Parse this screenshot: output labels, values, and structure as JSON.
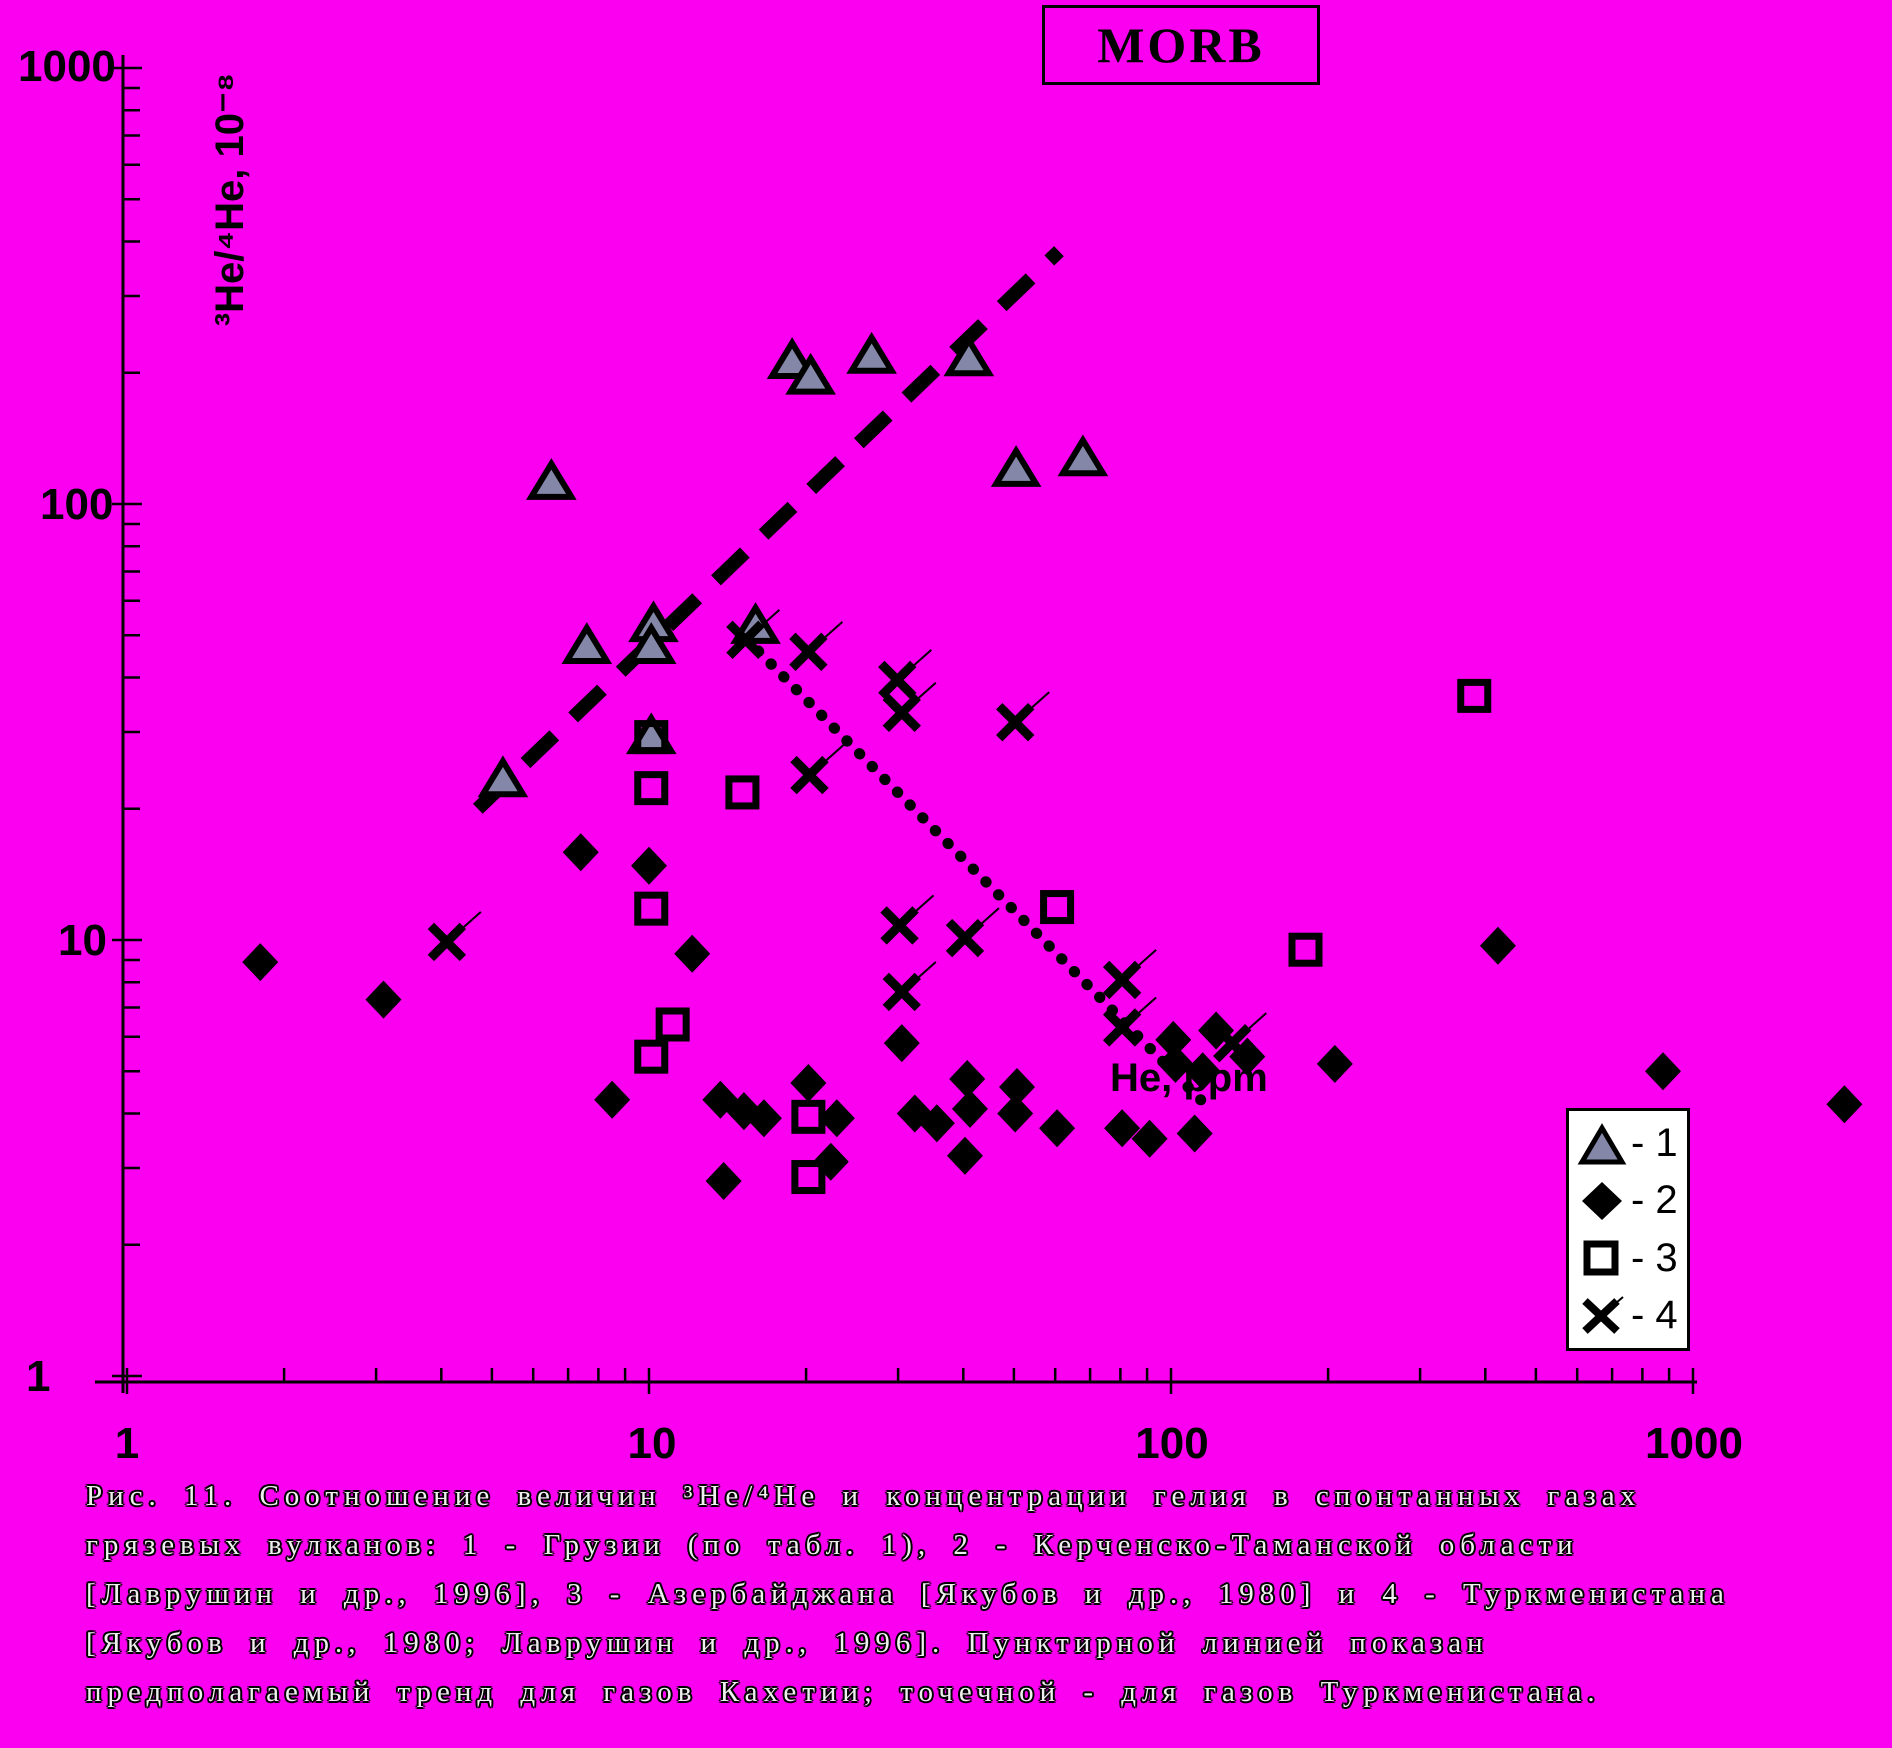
{
  "title_box": {
    "label": "MORB"
  },
  "axes": {
    "y_label": "³He/⁴He, 10⁻⁸",
    "x_label": "He, ppm",
    "y_ticks": [
      "1000",
      "100",
      "10",
      "1"
    ],
    "x_ticks": [
      "1",
      "10",
      "100",
      "1000"
    ]
  },
  "legend": {
    "items": [
      {
        "symbol": "triangle",
        "label": "- 1"
      },
      {
        "symbol": "diamond",
        "label": "- 2"
      },
      {
        "symbol": "square",
        "label": "- 3"
      },
      {
        "symbol": "x",
        "label": "- 4"
      }
    ]
  },
  "colors": {
    "background": "#FB00F0",
    "triangle_fill": "#8487A8",
    "ink": "#000000",
    "legend_background": "#FFFFFF"
  },
  "caption": {
    "lines": [
      "Рис. 11. Соотношение величин ³Не/⁴Не и концентрации гелия в спонтанных газах",
      "грязевых вулканов: 1 - Грузии (по табл. 1), 2 - Керченско-Таманской области",
      "[Лаврушин и др., 1996], 3 - Азербайджана [Якубов и др., 1980] и 4 - Туркменистана",
      "[Якубов и др., 1980; Лаврушин и др., 1996]. Пунктирной линией показан",
      "предполагаемый тренд для газов Кахетии; точечной - для газов Туркменистана."
    ]
  },
  "chart_data": {
    "type": "scatter",
    "x_scale": "log",
    "y_scale": "log",
    "xlim": [
      1,
      1000
    ],
    "ylim": [
      1,
      1000
    ],
    "xlabel": "He, ppm",
    "ylabel": "3He/4He, 10^-8",
    "grid": false,
    "legend_position": "bottom-right",
    "series": [
      {
        "name": "1 - Georgia (mud volcanoes)",
        "marker": "triangle",
        "points": [
          [
            18.8,
            214
          ],
          [
            20.4,
            197
          ],
          [
            26.7,
            220
          ],
          [
            41,
            217
          ],
          [
            6.5,
            113
          ],
          [
            50.5,
            121
          ],
          [
            67.8,
            128
          ],
          [
            7.6,
            47.5
          ],
          [
            10.2,
            53.3
          ],
          [
            10.1,
            47.5
          ],
          [
            16,
            52.8
          ],
          [
            10.1,
            29.5
          ],
          [
            5.25,
            23.5
          ]
        ]
      },
      {
        "name": "2 - Kerch-Taman region",
        "marker": "diamond",
        "points": [
          [
            1.8,
            8.9
          ],
          [
            3.1,
            7.3
          ],
          [
            7.4,
            15.9
          ],
          [
            10,
            14.8
          ],
          [
            8.5,
            4.3
          ],
          [
            12.1,
            9.3
          ],
          [
            13.7,
            4.3
          ],
          [
            15.2,
            4.05
          ],
          [
            16.6,
            3.9
          ],
          [
            20.2,
            4.7
          ],
          [
            22.9,
            3.9
          ],
          [
            22.3,
            3.1
          ],
          [
            13.9,
            2.8
          ],
          [
            30.5,
            5.8
          ],
          [
            40.7,
            4.8
          ],
          [
            50.7,
            4.6
          ],
          [
            32.3,
            4.0
          ],
          [
            35.6,
            3.8
          ],
          [
            41.2,
            4.1
          ],
          [
            50.3,
            4.0
          ],
          [
            40.3,
            3.2
          ],
          [
            60.5,
            3.7
          ],
          [
            80.6,
            3.7
          ],
          [
            91,
            3.5
          ],
          [
            111,
            3.6
          ],
          [
            101,
            5.9
          ],
          [
            122,
            6.2
          ],
          [
            102,
            5.2
          ],
          [
            115,
            5.0
          ],
          [
            140,
            5.4
          ],
          [
            206,
            5.2
          ],
          [
            423,
            9.7
          ],
          [
            876,
            5.0
          ],
          [
            1950,
            4.2
          ]
        ]
      },
      {
        "name": "3 - Azerbaijan",
        "marker": "square",
        "points": [
          [
            10.1,
            29.2
          ],
          [
            10.1,
            22.3
          ],
          [
            15.1,
            21.8
          ],
          [
            10.1,
            11.8
          ],
          [
            11.1,
            6.4
          ],
          [
            10.1,
            5.4
          ],
          [
            20.2,
            3.93
          ],
          [
            20.2,
            2.86
          ],
          [
            60.5,
            11.9
          ],
          [
            181,
            9.5
          ],
          [
            381,
            36.3
          ]
        ]
      },
      {
        "name": "4 - Turkmenistan",
        "marker": "x",
        "points": [
          [
            4.1,
            9.9
          ],
          [
            15.3,
            48.8
          ],
          [
            20.2,
            45.8
          ],
          [
            29.9,
            39.5
          ],
          [
            30.5,
            33.2
          ],
          [
            50.3,
            31.6
          ],
          [
            20.3,
            23.9
          ],
          [
            30.2,
            10.8
          ],
          [
            40.3,
            10.1
          ],
          [
            30.5,
            7.6
          ],
          [
            80.6,
            8.1
          ],
          [
            80.6,
            6.3
          ],
          [
            131,
            5.8
          ]
        ]
      }
    ],
    "trend_lines": [
      {
        "style": "dashed",
        "from": [
          4.7,
          20
        ],
        "to": [
          61,
          380
        ],
        "note": "Kakheti gases trend"
      },
      {
        "style": "dotted",
        "from": [
          16.2,
          46
        ],
        "to": [
          114,
          4.3
        ],
        "note": "Turkmenistan gases trend"
      }
    ]
  }
}
